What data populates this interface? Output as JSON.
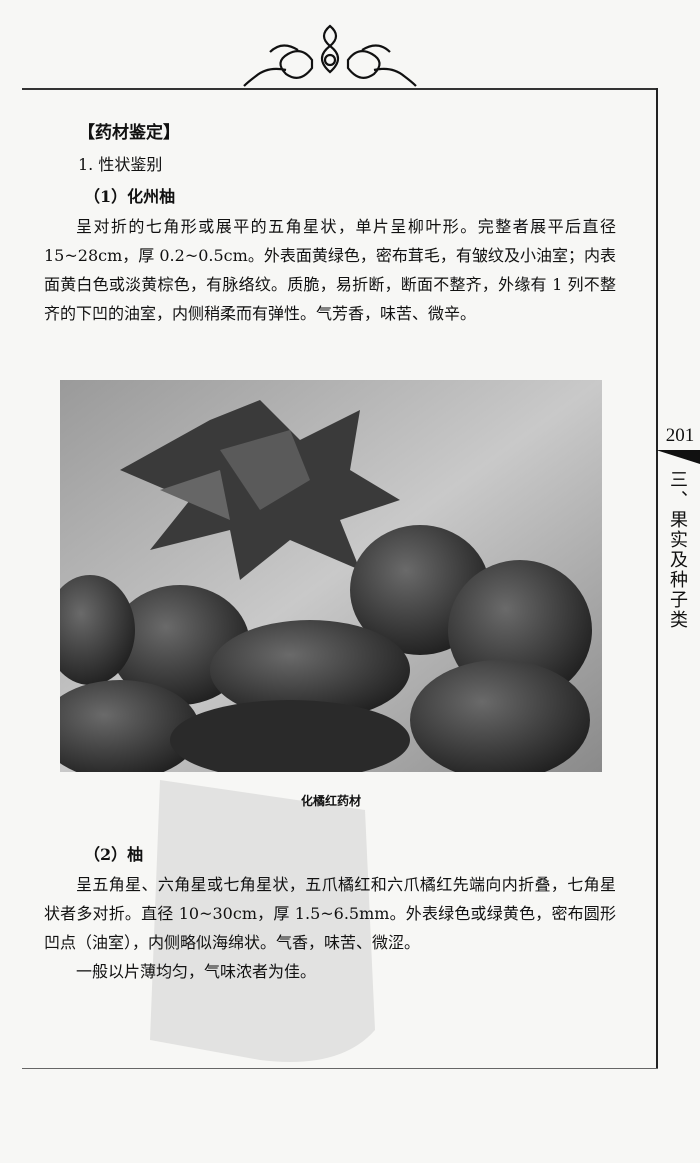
{
  "page": {
    "number": "201",
    "side_title": "三、果实及种子类"
  },
  "section": {
    "heading": "【药材鉴定】",
    "subheading": "1. 性状鉴别",
    "item1": {
      "title": "（1）化州柚",
      "text": "呈对折的七角形或展平的五角星状，单片呈柳叶形。完整者展平后直径 15~28cm，厚 0.2~0.5cm。外表面黄绿色，密布茸毛，有皱纹及小油室；内表面黄白色或淡黄棕色，有脉络纹。质脆，易折断，断面不整齐，外缘有 1 列不整齐的下凹的油室，内侧稍柔而有弹性。气芳香，味苦、微辛。"
    },
    "figure": {
      "caption": "化橘红药材"
    },
    "item2": {
      "title": "（2）柚",
      "text": "呈五角星、六角星或七角星状，五爪橘红和六爪橘红先端向内折叠，七角星状者多对折。直径 10~30cm，厚 1.5~6.5mm。外表绿色或绿黄色，密布圆形凹点（油室），内侧略似海绵状。气香，味苦、微涩。",
      "note": "一般以片薄均匀，气味浓者为佳。"
    }
  }
}
